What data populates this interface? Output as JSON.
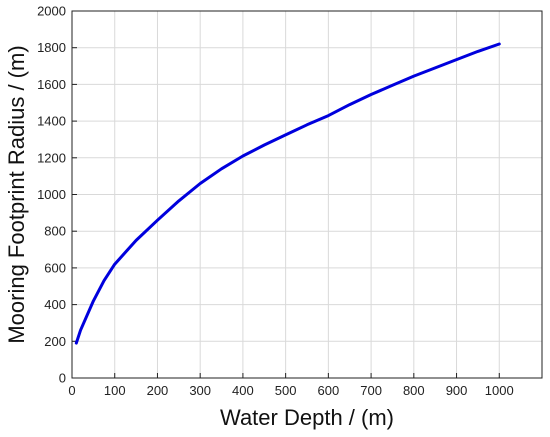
{
  "chart_data": {
    "type": "line",
    "title": "",
    "xlabel": "Water Depth / (m)",
    "ylabel": "Mooring Footprint Radius / (m)",
    "xlim": [
      0,
      1100
    ],
    "ylim": [
      0,
      2000
    ],
    "xticks": [
      0,
      100,
      200,
      300,
      400,
      500,
      600,
      700,
      800,
      900,
      1000
    ],
    "yticks": [
      0,
      200,
      400,
      600,
      800,
      1000,
      1200,
      1400,
      1600,
      1800,
      2000
    ],
    "grid": true,
    "legend": "none",
    "series": [
      {
        "color": "#0000dd",
        "x": [
          10,
          20,
          50,
          75,
          100,
          150,
          200,
          250,
          300,
          350,
          400,
          450,
          500,
          550,
          600,
          650,
          700,
          750,
          800,
          850,
          900,
          950,
          1000
        ],
        "y": [
          190,
          260,
          420,
          530,
          620,
          750,
          860,
          965,
          1060,
          1140,
          1210,
          1270,
          1325,
          1380,
          1430,
          1490,
          1545,
          1595,
          1645,
          1690,
          1735,
          1780,
          1820
        ]
      }
    ]
  }
}
